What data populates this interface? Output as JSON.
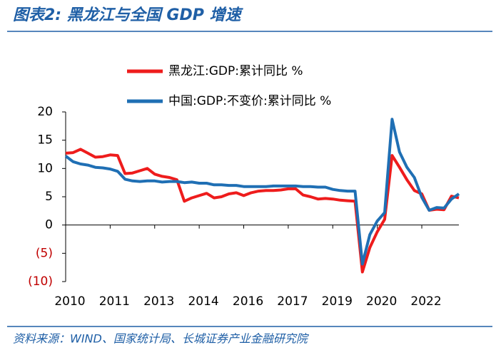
{
  "title": "图表2:  黑龙江与全国 GDP 增速",
  "source": "资料来源：WIND、国家统计局、长城证券产业金融研究院",
  "chart_data": {
    "type": "line",
    "categories": [
      "2010",
      null,
      null,
      null,
      null,
      null,
      "2011",
      null,
      null,
      null,
      null,
      null,
      "2013",
      null,
      null,
      null,
      null,
      null,
      "2014",
      null,
      null,
      null,
      null,
      null,
      "2016",
      null,
      null,
      null,
      null,
      null,
      "2017",
      null,
      null,
      null,
      null,
      null,
      "2019",
      null,
      null,
      null,
      null,
      null,
      "2020",
      null,
      null,
      null,
      null,
      null,
      "2022",
      null,
      null,
      null,
      null,
      null
    ],
    "series": [
      {
        "name": "黑龙江:GDP:累计同比 %",
        "color": "#ee1c1c",
        "values": [
          12.7,
          12.8,
          13.4,
          12.7,
          12.0,
          12.1,
          12.4,
          12.3,
          9.1,
          9.2,
          9.6,
          10.0,
          9.0,
          8.6,
          8.4,
          8.0,
          4.2,
          4.8,
          5.2,
          5.6,
          4.8,
          5.0,
          5.5,
          5.7,
          5.2,
          5.7,
          6.0,
          6.1,
          6.1,
          6.2,
          6.4,
          6.4,
          5.3,
          5.0,
          4.6,
          4.7,
          4.6,
          4.4,
          4.3,
          4.2,
          -8.3,
          -4.0,
          -1.2,
          1.0,
          12.3,
          10.2,
          8.0,
          6.1,
          5.5,
          2.6,
          2.8,
          2.7,
          5.1,
          4.8
        ]
      },
      {
        "name": "中国:GDP:不变价:累计同比 %",
        "color": "#1f6fb4",
        "values": [
          12.2,
          11.2,
          10.8,
          10.6,
          10.2,
          10.1,
          9.9,
          9.5,
          8.1,
          7.8,
          7.7,
          7.8,
          7.8,
          7.6,
          7.7,
          7.7,
          7.5,
          7.6,
          7.4,
          7.4,
          7.1,
          7.1,
          7.0,
          7.0,
          6.8,
          6.8,
          6.8,
          6.8,
          6.9,
          6.9,
          6.9,
          6.9,
          6.8,
          6.8,
          6.7,
          6.7,
          6.3,
          6.1,
          6.0,
          6.0,
          -6.9,
          -1.7,
          0.7,
          2.2,
          18.7,
          12.9,
          10.2,
          8.4,
          4.9,
          2.6,
          3.1,
          3.0,
          4.6,
          5.5
        ]
      }
    ],
    "ylim": [
      -10,
      20
    ],
    "yticks": [
      {
        "value": -10,
        "label": "(10)"
      },
      {
        "value": -5,
        "label": "(5)"
      },
      0,
      5,
      10,
      15,
      20
    ]
  }
}
